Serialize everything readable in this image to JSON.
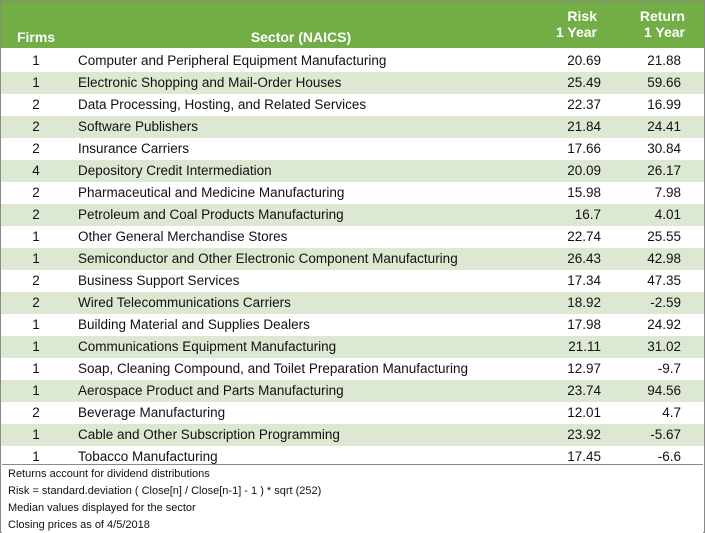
{
  "chart_data": {
    "type": "table",
    "columns": {
      "firms": "Firms",
      "sector": "Sector (NAICS)",
      "risk": [
        "Risk",
        "1 Year"
      ],
      "return": [
        "Return",
        "1 Year"
      ]
    },
    "rows": [
      {
        "firms": "1",
        "sector": "Computer and Peripheral Equipment Manufacturing",
        "risk": "20.69",
        "return": "21.88"
      },
      {
        "firms": "1",
        "sector": "Electronic Shopping and Mail-Order Houses",
        "risk": "25.49",
        "return": "59.66"
      },
      {
        "firms": "2",
        "sector": "Data Processing, Hosting, and Related Services",
        "risk": "22.37",
        "return": "16.99"
      },
      {
        "firms": "2",
        "sector": "Software Publishers",
        "risk": "21.84",
        "return": "24.41"
      },
      {
        "firms": "2",
        "sector": "Insurance Carriers",
        "risk": "17.66",
        "return": "30.84"
      },
      {
        "firms": "4",
        "sector": "Depository Credit Intermediation",
        "risk": "20.09",
        "return": "26.17"
      },
      {
        "firms": "2",
        "sector": "Pharmaceutical and Medicine Manufacturing",
        "risk": "15.98",
        "return": "7.98"
      },
      {
        "firms": "2",
        "sector": "Petroleum and Coal Products Manufacturing",
        "risk": "16.7",
        "return": "4.01"
      },
      {
        "firms": "1",
        "sector": "Other General Merchandise Stores",
        "risk": "22.74",
        "return": "25.55"
      },
      {
        "firms": "1",
        "sector": "Semiconductor and Other Electronic Component Manufacturing",
        "risk": "26.43",
        "return": "42.98"
      },
      {
        "firms": "2",
        "sector": "Business Support Services",
        "risk": "17.34",
        "return": "47.35"
      },
      {
        "firms": "2",
        "sector": "Wired Telecommunications Carriers",
        "risk": "18.92",
        "return": "-2.59"
      },
      {
        "firms": "1",
        "sector": "Building Material and Supplies Dealers",
        "risk": "17.98",
        "return": "24.92"
      },
      {
        "firms": "1",
        "sector": "Communications Equipment Manufacturing",
        "risk": "21.11",
        "return": "31.02"
      },
      {
        "firms": "1",
        "sector": "Soap, Cleaning Compound, and Toilet Preparation Manufacturing",
        "risk": "12.97",
        "return": "-9.7"
      },
      {
        "firms": "1",
        "sector": "Aerospace Product and Parts Manufacturing",
        "risk": "23.74",
        "return": "94.56"
      },
      {
        "firms": "2",
        "sector": "Beverage Manufacturing",
        "risk": "12.01",
        "return": "4.7"
      },
      {
        "firms": "1",
        "sector": "Cable and Other Subscription Programming",
        "risk": "23.92",
        "return": "-5.67"
      },
      {
        "firms": "1",
        "sector": "Tobacco Manufacturing",
        "risk": "17.45",
        "return": "-6.6"
      }
    ],
    "notes": [
      "Returns account for dividend distributions",
      "Risk = standard.deviation ( Close[n] / Close[n-1] - 1 ) * sqrt (252)",
      "Median values displayed for the sector",
      "Closing prices as of 4/5/2018"
    ]
  },
  "colors": {
    "header_bg": "#72ad45",
    "header_text": "#ffffff",
    "row_alt": "#dde8d2",
    "row": "#ffffff"
  }
}
